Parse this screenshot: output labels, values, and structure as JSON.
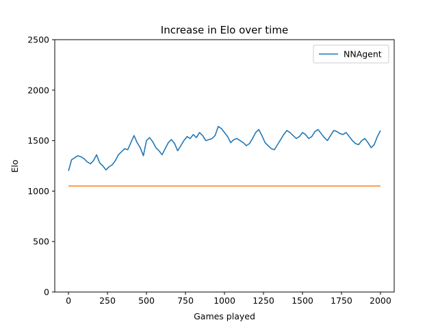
{
  "chart_data": {
    "type": "line",
    "title": "Increase in Elo over time",
    "xlabel": "Games played",
    "ylabel": "Elo",
    "xlim": [
      -88,
      2088
    ],
    "ylim": [
      0,
      2500
    ],
    "xticks": [
      0,
      250,
      500,
      750,
      1000,
      1250,
      1500,
      1750,
      2000
    ],
    "yticks": [
      0,
      500,
      1000,
      1500,
      2000,
      2500
    ],
    "grid": false,
    "legend": {
      "placement": "top-right",
      "entries": [
        "NNAgent"
      ]
    },
    "series": [
      {
        "name": "NNAgent",
        "color": "#1f77b4",
        "x": [
          0,
          20,
          40,
          60,
          80,
          100,
          120,
          140,
          160,
          180,
          200,
          220,
          240,
          260,
          280,
          300,
          320,
          340,
          360,
          380,
          400,
          420,
          440,
          460,
          480,
          500,
          520,
          540,
          560,
          580,
          600,
          620,
          640,
          660,
          680,
          700,
          720,
          740,
          760,
          780,
          800,
          820,
          840,
          860,
          880,
          900,
          920,
          940,
          960,
          980,
          1000,
          1020,
          1040,
          1060,
          1080,
          1100,
          1120,
          1140,
          1160,
          1180,
          1200,
          1220,
          1240,
          1260,
          1280,
          1300,
          1320,
          1340,
          1360,
          1380,
          1400,
          1420,
          1440,
          1460,
          1480,
          1500,
          1520,
          1540,
          1560,
          1580,
          1600,
          1620,
          1640,
          1660,
          1680,
          1700,
          1720,
          1740,
          1760,
          1780,
          1800,
          1820,
          1840,
          1860,
          1880,
          1900,
          1920,
          1940,
          1960,
          1980,
          2000
        ],
        "y": [
          1200,
          1310,
          1330,
          1350,
          1340,
          1320,
          1290,
          1270,
          1300,
          1360,
          1280,
          1250,
          1210,
          1240,
          1260,
          1300,
          1360,
          1390,
          1420,
          1410,
          1480,
          1550,
          1480,
          1430,
          1350,
          1500,
          1530,
          1490,
          1430,
          1400,
          1360,
          1420,
          1480,
          1510,
          1470,
          1400,
          1450,
          1500,
          1540,
          1520,
          1560,
          1530,
          1580,
          1550,
          1500,
          1510,
          1520,
          1550,
          1640,
          1620,
          1580,
          1540,
          1480,
          1510,
          1520,
          1500,
          1480,
          1450,
          1470,
          1520,
          1580,
          1610,
          1550,
          1480,
          1450,
          1420,
          1410,
          1460,
          1510,
          1560,
          1600,
          1580,
          1550,
          1520,
          1540,
          1580,
          1560,
          1520,
          1540,
          1590,
          1610,
          1570,
          1530,
          1500,
          1550,
          1600,
          1590,
          1570,
          1560,
          1580,
          1540,
          1500,
          1470,
          1460,
          1500,
          1520,
          1480,
          1430,
          1460,
          1540,
          1600
        ]
      },
      {
        "name": "",
        "color": "#ff7f0e",
        "x": [
          0,
          2000
        ],
        "y": [
          1050,
          1050
        ]
      }
    ]
  }
}
